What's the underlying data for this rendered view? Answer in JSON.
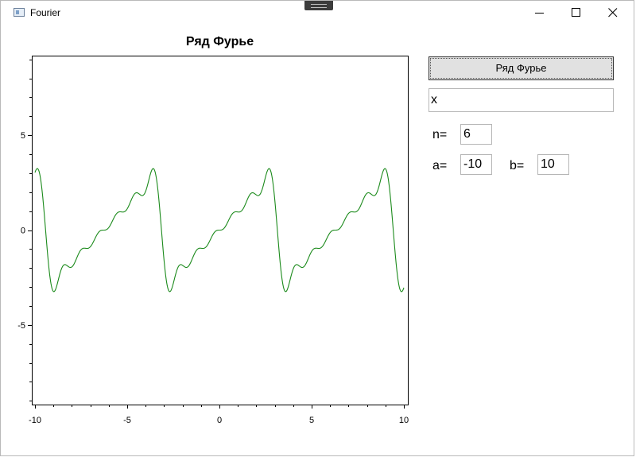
{
  "window": {
    "title": "Fourier"
  },
  "controls": {
    "button_label": "Ряд Фурье",
    "function_value": "x",
    "n_label": "n=",
    "n_value": "6",
    "a_label": "a=",
    "a_value": "-10",
    "b_label": "b=",
    "b_value": "10"
  },
  "chart_data": {
    "type": "line",
    "title": "Ряд Фурье",
    "xlabel": "",
    "ylabel": "",
    "xlim": [
      -10,
      10
    ],
    "ylim": [
      -9.2,
      9.2
    ],
    "x_ticks": [
      -10,
      -5,
      0,
      5,
      10
    ],
    "y_ticks": [
      5,
      0,
      -5
    ],
    "grid": false,
    "series": [
      {
        "function": "x",
        "terms": 6,
        "a": -10,
        "b": 10,
        "color": "#1b8a1b"
      }
    ]
  }
}
